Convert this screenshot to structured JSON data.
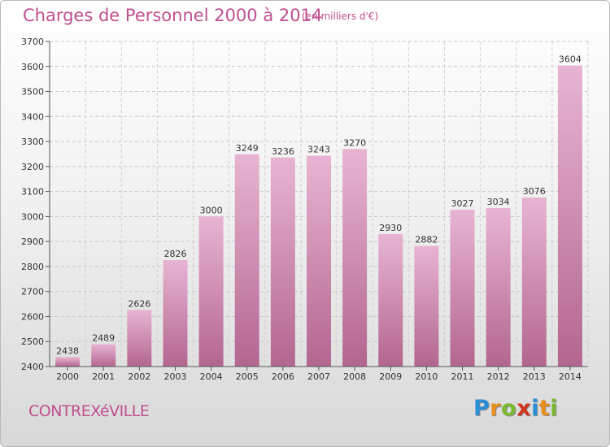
{
  "title": "Charges de Personnel 2000 à 2014",
  "subtitle": "(en milliers d'€)",
  "commune": "CONTREXéVILLE",
  "logo": {
    "letters": [
      "P",
      "r",
      "o",
      "x",
      "i",
      "t",
      "i"
    ],
    "colors": [
      "#2a8fd6",
      "#e8901c",
      "#7ab82f",
      "#d0361c",
      "#2a8fd6",
      "#e8901c",
      "#7ab82f"
    ]
  },
  "colors": {
    "bar_top": "#e8b4d3",
    "bar_bottom": "#b3668f",
    "accent": "#c0508f"
  },
  "chart_data": {
    "type": "bar",
    "categories": [
      "2000",
      "2001",
      "2002",
      "2003",
      "2004",
      "2005",
      "2006",
      "2007",
      "2008",
      "2009",
      "2010",
      "2011",
      "2012",
      "2013",
      "2014"
    ],
    "values": [
      2438,
      2489,
      2626,
      2826,
      3000,
      3249,
      3236,
      3243,
      3270,
      2930,
      2882,
      3027,
      3034,
      3076,
      3604
    ],
    "ylim": [
      2400,
      3700
    ],
    "yticks": [
      2400,
      2500,
      2600,
      2700,
      2800,
      2900,
      3000,
      3100,
      3200,
      3300,
      3400,
      3500,
      3600,
      3700
    ],
    "grid": true
  }
}
